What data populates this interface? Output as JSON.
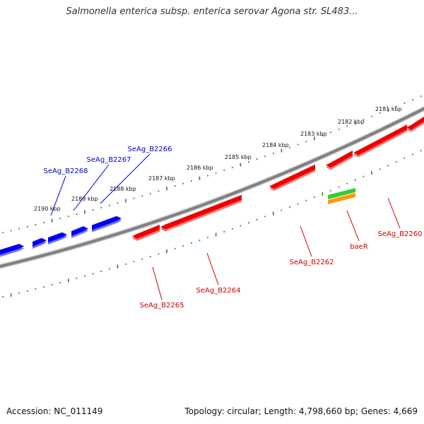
{
  "title": "Salmonella enterica subsp. enterica serovar Agona str. SL483...",
  "footer": {
    "accession": "Accession: NC_011149",
    "summary": "Topology: circular; Length: 4,798,660 bp; Genes: 4,669"
  },
  "colors": {
    "backbone": "#808080",
    "forward_gene": "#0000ee",
    "reverse_gene": "#ee0000",
    "rna_green": "#33cc33",
    "rna_orange": "#ff9900",
    "ticks": "#228b22",
    "forward_label": "#0000cc",
    "reverse_label": "#cc0000"
  },
  "kbp_labels": [
    "2190 kbp",
    "2189 kbp",
    "2188 kbp",
    "2187 kbp",
    "2186 kbp",
    "2185 kbp",
    "2184 kbp",
    "2183 kbp",
    "2182 kbp",
    "2181 kbp"
  ],
  "gene_labels": {
    "forward": [
      "SeAg_B2268",
      "SeAg_B2267",
      "SeAg_B2266"
    ],
    "reverse": [
      "SeAg_B2265",
      "SeAg_B2264",
      "SeAg_B2262",
      "baeR",
      "SeAg_B2260"
    ]
  }
}
